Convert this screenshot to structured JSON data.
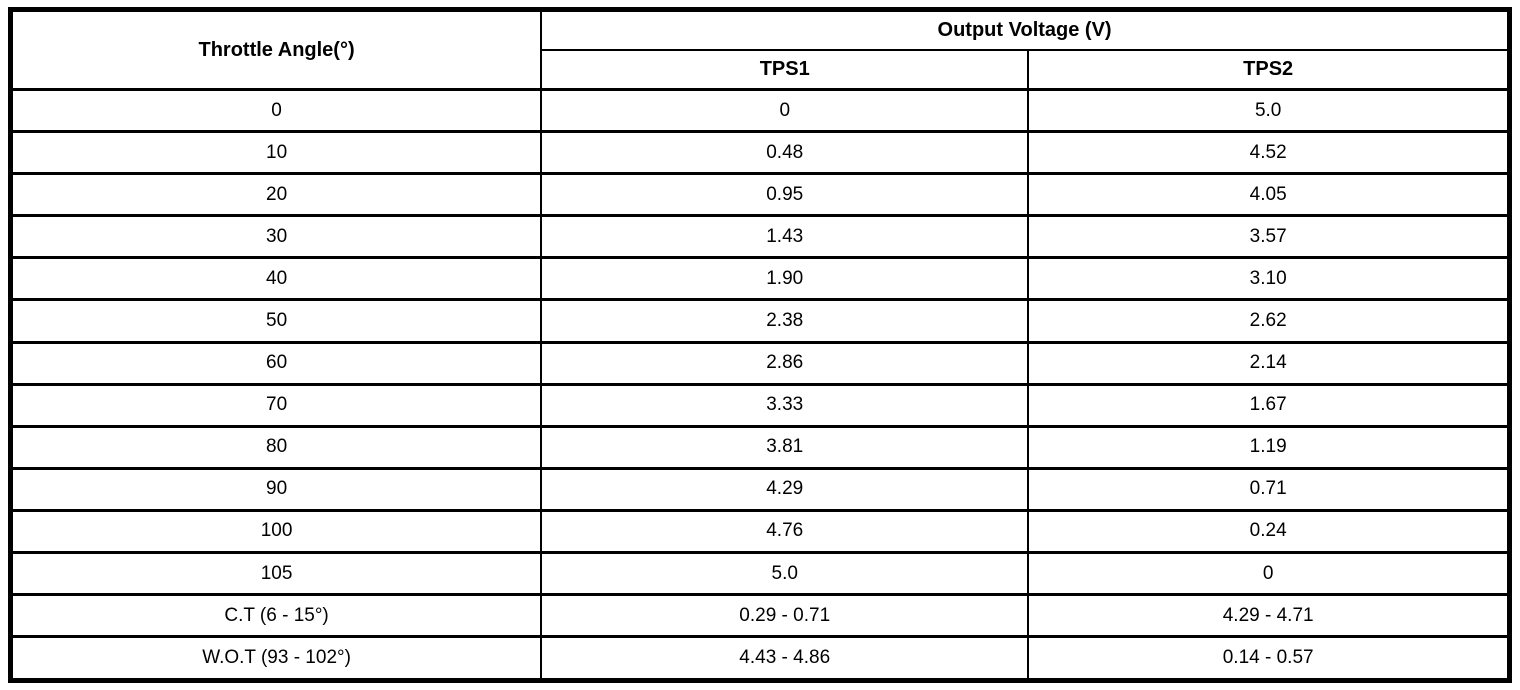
{
  "table": {
    "col1_header": "Throttle Angle(°)",
    "group_header": "Output Voltage (V)",
    "sub_headers": [
      "TPS1",
      "TPS2"
    ],
    "rows": [
      {
        "angle": "0",
        "tps1": "0",
        "tps2": "5.0"
      },
      {
        "angle": "10",
        "tps1": "0.48",
        "tps2": "4.52"
      },
      {
        "angle": "20",
        "tps1": "0.95",
        "tps2": "4.05"
      },
      {
        "angle": "30",
        "tps1": "1.43",
        "tps2": "3.57"
      },
      {
        "angle": "40",
        "tps1": "1.90",
        "tps2": "3.10"
      },
      {
        "angle": "50",
        "tps1": "2.38",
        "tps2": "2.62"
      },
      {
        "angle": "60",
        "tps1": "2.86",
        "tps2": "2.14"
      },
      {
        "angle": "70",
        "tps1": "3.33",
        "tps2": "1.67"
      },
      {
        "angle": "80",
        "tps1": "3.81",
        "tps2": "1.19"
      },
      {
        "angle": "90",
        "tps1": "4.29",
        "tps2": "0.71"
      },
      {
        "angle": "100",
        "tps1": "4.76",
        "tps2": "0.24"
      },
      {
        "angle": "105",
        "tps1": "5.0",
        "tps2": "0"
      },
      {
        "angle": "C.T (6 - 15°)",
        "tps1": "0.29 - 0.71",
        "tps2": "4.29 - 4.71"
      },
      {
        "angle": "W.O.T (93 - 102°)",
        "tps1": "4.43 - 4.86",
        "tps2": "0.14 - 0.57"
      }
    ],
    "colors": {
      "border": "#000000",
      "text": "#000000",
      "background": "#ffffff"
    }
  }
}
